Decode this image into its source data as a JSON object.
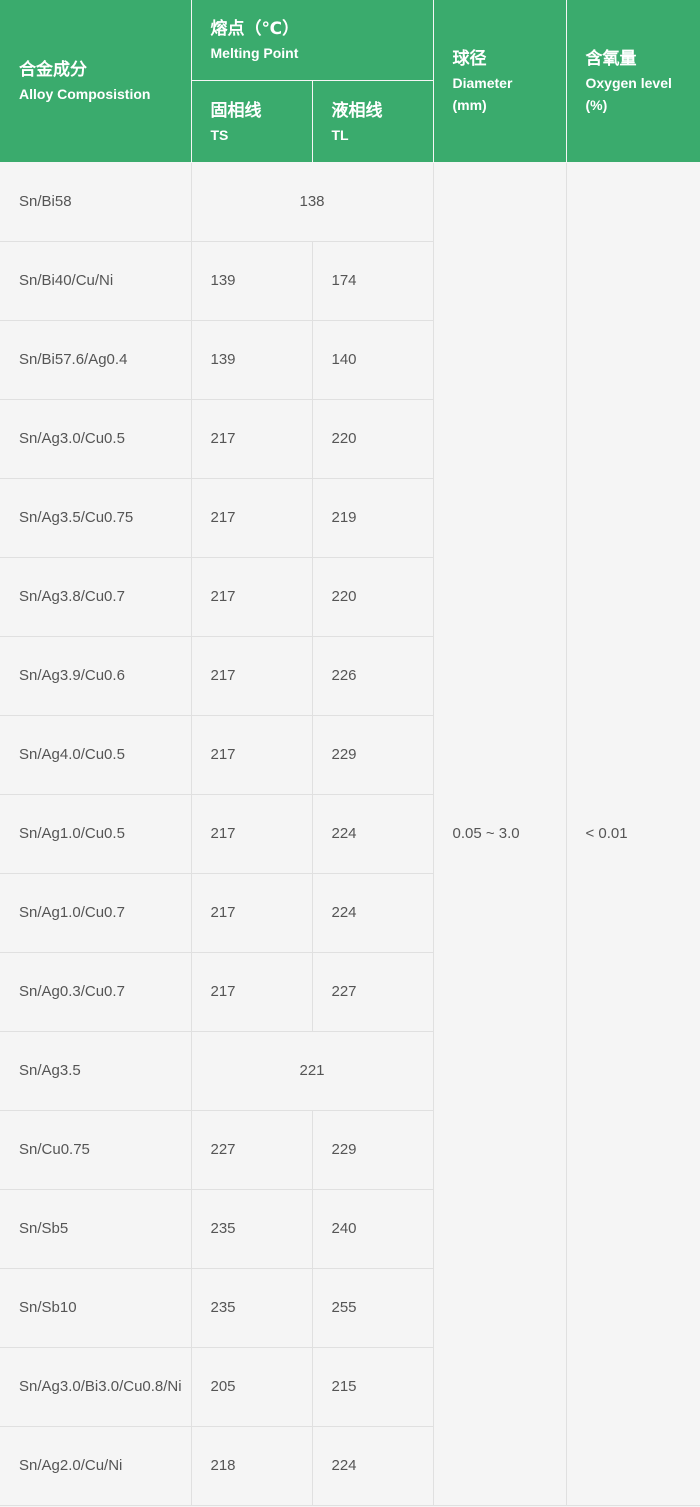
{
  "header": {
    "composition": {
      "cn": "合金成分",
      "en": "Alloy Composistion"
    },
    "melting": {
      "cn": "熔点（℃）",
      "en": "Melting Point"
    },
    "ts": {
      "cn": "固相线",
      "en": "TS"
    },
    "tl": {
      "cn": "液相线",
      "en": "TL"
    },
    "diameter": {
      "cn": "球径",
      "en": "Diameter",
      "unit": "(mm)"
    },
    "oxygen": {
      "cn": "含氧量",
      "en": "Oxygen level",
      "unit": "(%)"
    }
  },
  "diameter_value": "0.05 ~ 3.0",
  "oxygen_value": "< 0.01",
  "rows": [
    {
      "alloy": "Sn/Bi58",
      "merged": "138"
    },
    {
      "alloy": "Sn/Bi40/Cu/Ni",
      "ts": "139",
      "tl": "174"
    },
    {
      "alloy": "Sn/Bi57.6/Ag0.4",
      "ts": "139",
      "tl": "140"
    },
    {
      "alloy": "Sn/Ag3.0/Cu0.5",
      "ts": "217",
      "tl": "220"
    },
    {
      "alloy": "Sn/Ag3.5/Cu0.75",
      "ts": "217",
      "tl": "219"
    },
    {
      "alloy": "Sn/Ag3.8/Cu0.7",
      "ts": "217",
      "tl": "220"
    },
    {
      "alloy": "Sn/Ag3.9/Cu0.6",
      "ts": "217",
      "tl": "226"
    },
    {
      "alloy": "Sn/Ag4.0/Cu0.5",
      "ts": "217",
      "tl": "229"
    },
    {
      "alloy": "Sn/Ag1.0/Cu0.5",
      "ts": "217",
      "tl": "224"
    },
    {
      "alloy": "Sn/Ag1.0/Cu0.7",
      "ts": "217",
      "tl": "224"
    },
    {
      "alloy": "Sn/Ag0.3/Cu0.7",
      "ts": "217",
      "tl": "227"
    },
    {
      "alloy": "Sn/Ag3.5",
      "merged": "221"
    },
    {
      "alloy": "Sn/Cu0.75",
      "ts": "227",
      "tl": "229"
    },
    {
      "alloy": "Sn/Sb5",
      "ts": "235",
      "tl": "240"
    },
    {
      "alloy": "Sn/Sb10",
      "ts": "235",
      "tl": "255"
    },
    {
      "alloy": "Sn/Ag3.0/Bi3.0/Cu0.8/Ni",
      "ts": "205",
      "tl": "215"
    },
    {
      "alloy": "Sn/Ag2.0/Cu/Ni",
      "ts": "218",
      "tl": "224"
    }
  ]
}
